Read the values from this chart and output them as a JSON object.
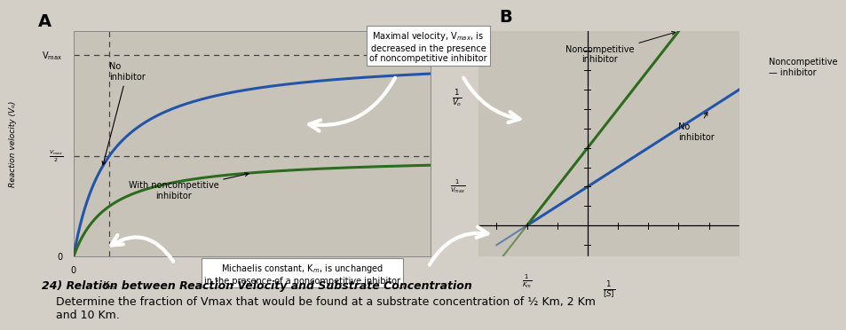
{
  "fig_bg": "#d4cfc6",
  "panel_bg": "#c8c3b8",
  "blue_color": "#2255aa",
  "green_color": "#2d6b1e",
  "title_A": "A",
  "title_B": "B",
  "bottom_line1": "24) Relation between Reaction Velocity and Substrate Concentration",
  "bottom_line2": "    Determine the fraction of Vmax that would be found at a substrate concentration of ½ Km, 2 Km",
  "bottom_line3": "    and 10 Km."
}
